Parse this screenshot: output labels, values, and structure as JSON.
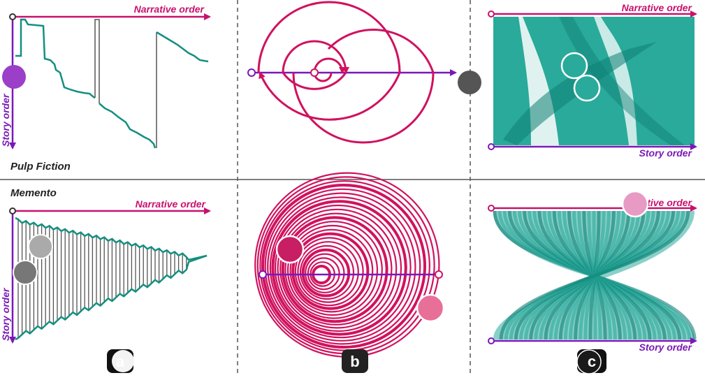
{
  "films": [
    {
      "title": "Pulp Fiction"
    },
    {
      "title": "Memento"
    }
  ],
  "axes": {
    "narrative": "Narrative order",
    "story": "Story order"
  },
  "panel_labels": [
    "a",
    "b",
    "c"
  ],
  "colors": {
    "narrative_axis": "#c8116e",
    "story_axis": "#7a18b8",
    "plot_line": "#138f80",
    "jump_line": "#555555",
    "spiral": "#d0125f",
    "flow": "#2aaa9b",
    "flow_dark": "#0d7f74",
    "divider": "#555555"
  },
  "icons": [
    "purple-dot-icon",
    "gray-dot-icon",
    "white-ring-dot-icon",
    "pink-dot-icon",
    "magenta-dot-icon"
  ]
}
